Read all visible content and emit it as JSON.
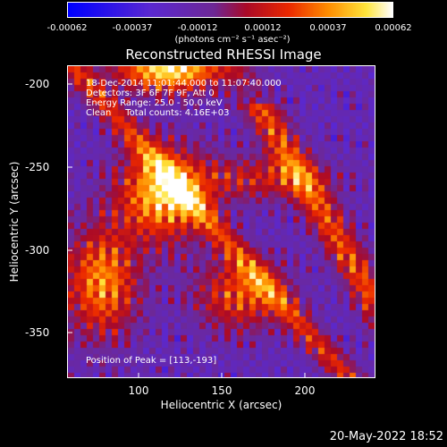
{
  "colorbar": {
    "tick_labels": [
      "-0.00062",
      "-0.00037",
      "-0.00012",
      "0.00012",
      "0.00037",
      "0.00062"
    ],
    "units": "(photons cm⁻² s⁻¹ asec⁻²)",
    "min": -0.00062,
    "max": 0.00062
  },
  "title": "Reconstructed RHESSI Image",
  "overlay": {
    "time_range": "18-Dec-2014 11:01:44.000 to 11:07:40.000",
    "detectors": "Detectors: 3F 6F 7F 9F, Att 0",
    "energy": "Energy Range: 25.0 - 50.0 keV",
    "clean": "Clean     Total counts: 4.16E+03",
    "peak": "Position of Peak = [113,-193]"
  },
  "axes": {
    "xlabel": "Heliocentric X (arcsec)",
    "ylabel": "Heliocentric Y (arcsec)",
    "xticks": [
      100,
      150,
      200
    ],
    "yticks": [
      -200,
      -250,
      -300,
      -350
    ],
    "xlim": [
      58,
      245
    ],
    "ylim": [
      -383,
      -188
    ]
  },
  "footer": {
    "date": "20-May-2022 18:52"
  }
}
